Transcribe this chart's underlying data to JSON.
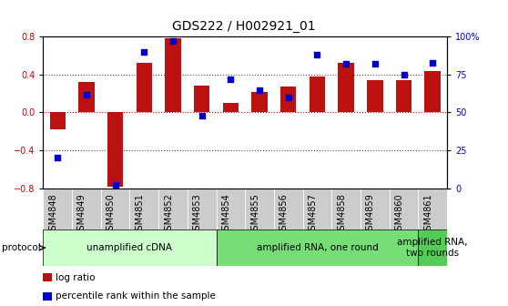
{
  "title": "GDS222 / H002921_01",
  "samples": [
    "GSM4848",
    "GSM4849",
    "GSM4850",
    "GSM4851",
    "GSM4852",
    "GSM4853",
    "GSM4854",
    "GSM4855",
    "GSM4856",
    "GSM4857",
    "GSM4858",
    "GSM4859",
    "GSM4860",
    "GSM4861"
  ],
  "log_ratio": [
    -0.18,
    0.32,
    -0.78,
    0.52,
    0.78,
    0.28,
    0.1,
    0.22,
    0.27,
    0.38,
    0.52,
    0.34,
    0.34,
    0.44
  ],
  "percentile": [
    20,
    62,
    2,
    90,
    97,
    48,
    72,
    65,
    60,
    88,
    82,
    82,
    75,
    83
  ],
  "bar_color": "#bb1111",
  "dot_color": "#0000cc",
  "ylim_left": [
    -0.8,
    0.8
  ],
  "ylim_right": [
    0,
    100
  ],
  "yticks_left": [
    -0.8,
    -0.4,
    0.0,
    0.4,
    0.8
  ],
  "yticks_right": [
    0,
    25,
    50,
    75,
    100
  ],
  "ytick_labels_right": [
    "0",
    "25",
    "50",
    "75",
    "100%"
  ],
  "hlines_black": [
    -0.4,
    0.4
  ],
  "hline_red": 0.0,
  "protocol_groups": [
    {
      "label": "unamplified cDNA",
      "start": 0,
      "end": 5,
      "color": "#ccffcc"
    },
    {
      "label": "amplified RNA, one round",
      "start": 6,
      "end": 12,
      "color": "#77dd77"
    },
    {
      "label": "amplified RNA,\ntwo rounds",
      "start": 13,
      "end": 13,
      "color": "#55cc55"
    }
  ],
  "protocol_label": "protocol",
  "legend_items": [
    {
      "color": "#bb1111",
      "label": "log ratio"
    },
    {
      "color": "#0000cc",
      "label": "percentile rank within the sample"
    }
  ],
  "bg_color": "#ffffff",
  "sample_box_color": "#cccccc",
  "bar_width": 0.55,
  "title_fontsize": 10,
  "axis_fontsize": 7,
  "protocol_fontsize": 7.5,
  "legend_fontsize": 7.5
}
